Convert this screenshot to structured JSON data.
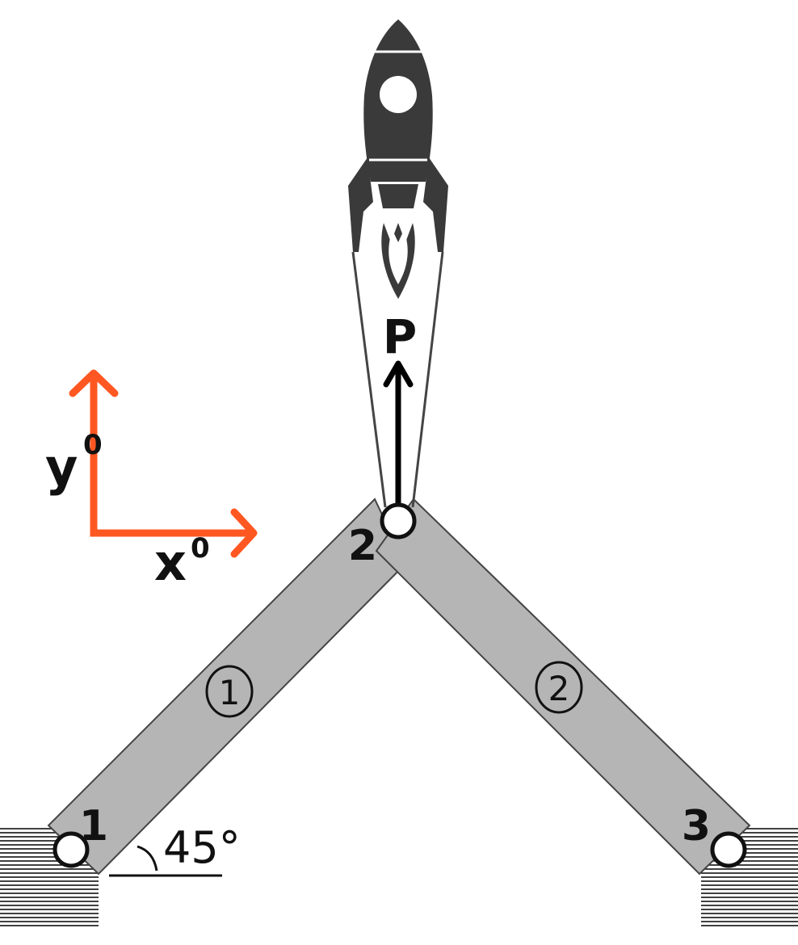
{
  "diagram": {
    "load": {
      "label": "P"
    },
    "axes": {
      "x_label": "x",
      "x_sup": "0",
      "y_label": "y",
      "y_sup": "0",
      "color": "#ff5722"
    },
    "nodes": [
      {
        "id": "1",
        "label": "1"
      },
      {
        "id": "2",
        "label": "2"
      },
      {
        "id": "3",
        "label": "3"
      }
    ],
    "elements": [
      {
        "id": "1",
        "label": "1",
        "from": "1",
        "to": "2"
      },
      {
        "id": "2",
        "label": "2",
        "from": "2",
        "to": "3"
      }
    ],
    "angle": {
      "label": "45°"
    },
    "colors": {
      "bar_fill": "#b5b5b5",
      "bar_stroke": "#444444",
      "rocket": "#3a3a3a",
      "arrow": "#000000"
    }
  }
}
